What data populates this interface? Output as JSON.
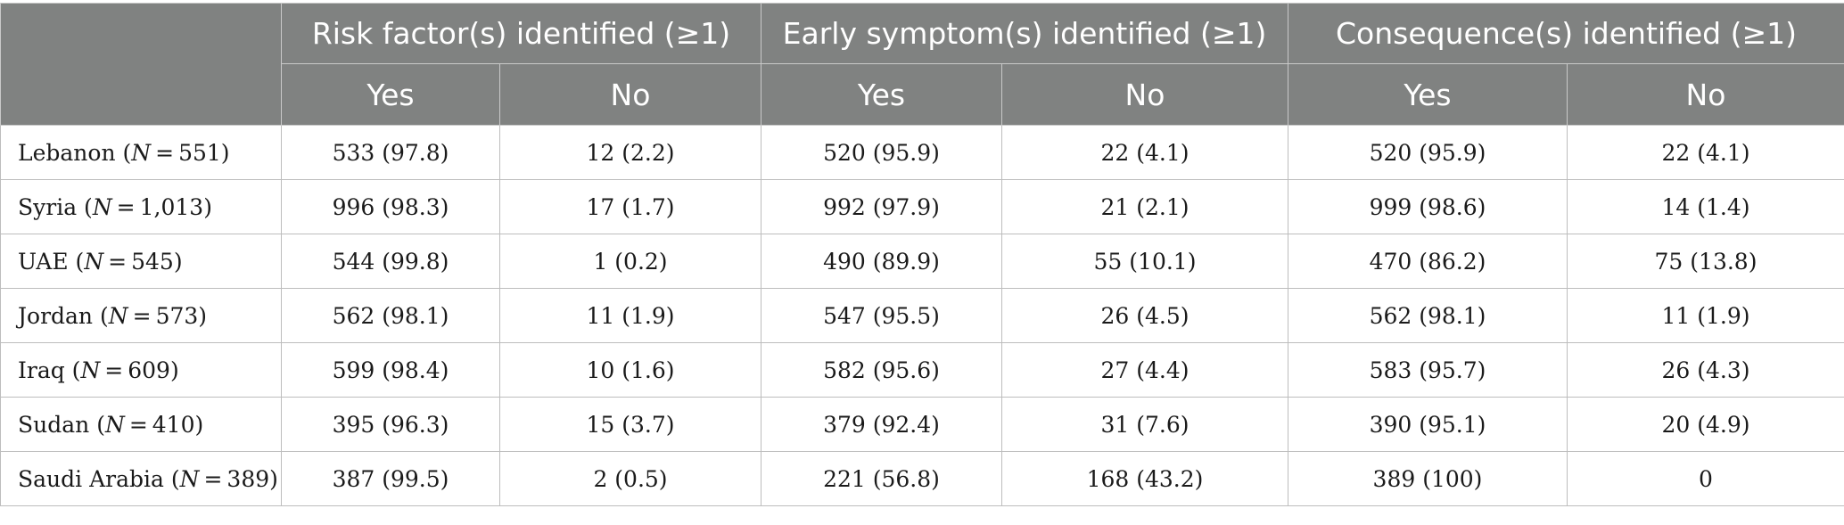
{
  "header": {
    "groups": [
      "Risk factor(s) identified (≥1)",
      "Early symptom(s) identified (≥1)",
      "Consequence(s) identified (≥1)"
    ],
    "subheaders": [
      "Yes",
      "No",
      "Yes",
      "No",
      "Yes",
      "No"
    ]
  },
  "rows": [
    {
      "country": "Lebanon",
      "n": "551",
      "values": [
        "533 (97.8)",
        "12 (2.2)",
        "520 (95.9)",
        "22 (4.1)",
        "520 (95.9)",
        "22 (4.1)"
      ]
    },
    {
      "country": "Syria",
      "n": "1,013",
      "values": [
        "996 (98.3)",
        "17 (1.7)",
        "992 (97.9)",
        "21 (2.1)",
        "999 (98.6)",
        "14 (1.4)"
      ]
    },
    {
      "country": "UAE",
      "n": "545",
      "values": [
        "544 (99.8)",
        "1 (0.2)",
        "490 (89.9)",
        "55 (10.1)",
        "470 (86.2)",
        "75 (13.8)"
      ]
    },
    {
      "country": "Jordan",
      "n": "573",
      "values": [
        "562 (98.1)",
        "11 (1.9)",
        "547 (95.5)",
        "26 (4.5)",
        "562 (98.1)",
        "11 (1.9)"
      ]
    },
    {
      "country": "Iraq",
      "n": "609",
      "values": [
        "599 (98.4)",
        "10 (1.6)",
        "582 (95.6)",
        "27 (4.4)",
        "583 (95.7)",
        "26 (4.3)"
      ]
    },
    {
      "country": "Sudan",
      "n": "410",
      "values": [
        "395 (96.3)",
        "15 (3.7)",
        "379 (92.4)",
        "31 (7.6)",
        "390 (95.1)",
        "20 (4.9)"
      ]
    },
    {
      "country": "Saudi Arabia",
      "n": "389",
      "values": [
        "387 (99.5)",
        "2 (0.5)",
        "221 (56.8)",
        "168 (43.2)",
        "389 (100)",
        "0"
      ]
    }
  ]
}
